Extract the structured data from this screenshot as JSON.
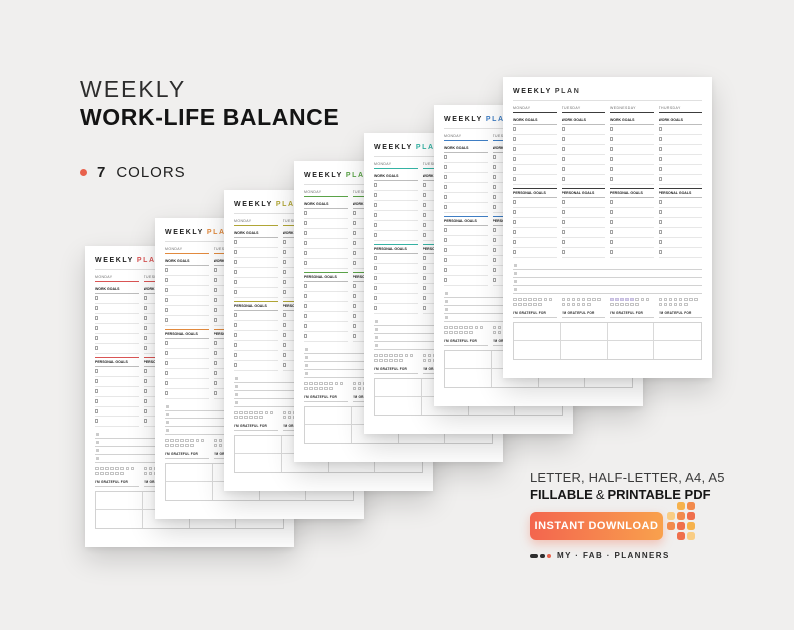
{
  "headline": {
    "line1": "WEEKLY",
    "line2": "WORK-LIFE BALANCE"
  },
  "colors_note": {
    "count": "7",
    "label": "COLORS"
  },
  "planner": {
    "title_word1": "WEEKLY",
    "title_word2": "PLAN",
    "days": [
      "MONDAY",
      "TUESDAY",
      "WEDNESDAY",
      "THURSDAY"
    ],
    "work_goals_label": "WORK GOALS",
    "personal_goals_label": "PERSONAL GOALS",
    "grateful_label": "I'M GRATEFUL FOR",
    "page_accents": [
      "#d95454",
      "#e28a3e",
      "#b1a636",
      "#5aa348",
      "#35b3a4",
      "#3f7ec4",
      "#3c3c3c"
    ]
  },
  "footer": {
    "formats_line": "LETTER, HALF-LETTER, A4, A5",
    "filetype_bold1": "FILLABLE",
    "filetype_amp": "&",
    "filetype_bold2": "PRINTABLE PDF",
    "download_button": "INSTANT DOWNLOAD",
    "brand": "MY · FAB · PLANNERS"
  },
  "colors": {
    "background": "#f0efee",
    "accent": "#e8614c",
    "button_gradient_start": "#f3654e",
    "button_gradient_end": "#f9a14d"
  }
}
